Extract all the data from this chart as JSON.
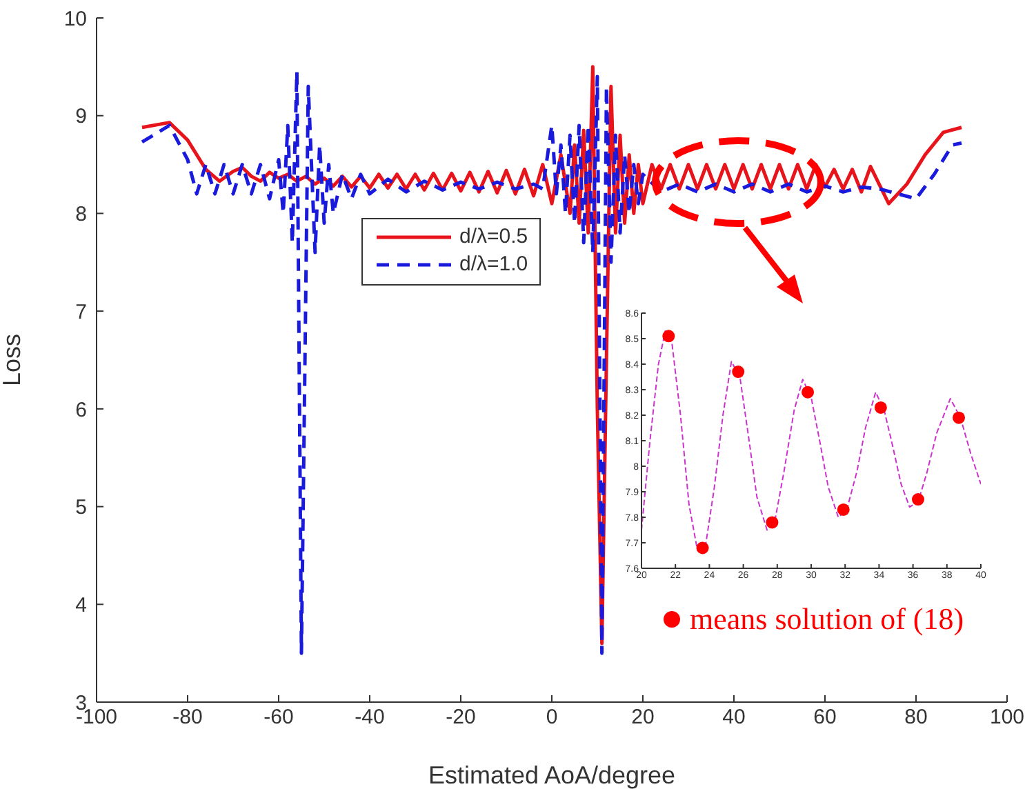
{
  "chart_data": [
    {
      "type": "line",
      "xlabel": "Estimated AoA/degree",
      "ylabel": "Loss",
      "xlim": [
        -100,
        100
      ],
      "xticks": [
        -100,
        -80,
        -60,
        -40,
        -20,
        0,
        20,
        40,
        60,
        80,
        100
      ],
      "ylim": [
        3,
        10
      ],
      "yticks": [
        3,
        4,
        5,
        6,
        7,
        8,
        9,
        10
      ],
      "grid": false,
      "legend": "top center",
      "marker": "none",
      "series": [
        {
          "name": "d/λ=0.5",
          "color": "#e8141c",
          "line_style": "solid",
          "x": [
            -90,
            -84,
            -80,
            -76,
            -73,
            -70,
            -68,
            -66,
            -64,
            -62,
            -60,
            -58,
            -56,
            -54,
            -52,
            -50,
            -48,
            -46,
            -44,
            -42,
            -40,
            -38,
            -36,
            -34,
            -32,
            -30,
            -28,
            -26,
            -24,
            -22,
            -20,
            -18,
            -16,
            -14,
            -12,
            -10,
            -8,
            -6,
            -4,
            -2,
            0,
            2,
            4,
            5,
            6,
            7,
            8,
            9,
            10,
            11,
            12,
            13,
            14,
            15,
            16,
            17,
            18,
            19,
            20,
            22,
            24,
            26,
            28,
            30,
            32,
            34,
            36,
            38,
            40,
            42,
            44,
            46,
            48,
            50,
            52,
            54,
            56,
            58,
            60,
            62,
            64,
            66,
            68,
            70,
            74,
            78,
            82,
            86,
            90
          ],
          "values": [
            8.88,
            8.93,
            8.75,
            8.45,
            8.33,
            8.43,
            8.47,
            8.38,
            8.33,
            8.42,
            8.36,
            8.4,
            8.33,
            8.38,
            8.3,
            8.36,
            8.28,
            8.38,
            8.27,
            8.38,
            8.26,
            8.4,
            8.26,
            8.4,
            8.25,
            8.4,
            8.24,
            8.41,
            8.24,
            8.41,
            8.23,
            8.42,
            8.22,
            8.43,
            8.21,
            8.44,
            8.2,
            8.45,
            8.18,
            8.5,
            8.1,
            8.6,
            8.0,
            8.7,
            7.9,
            8.85,
            7.8,
            9.5,
            6,
            3.6,
            6.5,
            9.3,
            7.8,
            8.8,
            7.9,
            8.6,
            8.0,
            8.5,
            8.1,
            8.5,
            8.25,
            8.5,
            8.25,
            8.5,
            8.25,
            8.5,
            8.25,
            8.5,
            8.25,
            8.5,
            8.25,
            8.5,
            8.25,
            8.5,
            8.25,
            8.5,
            8.25,
            8.5,
            8.27,
            8.45,
            8.25,
            8.45,
            8.22,
            8.48,
            8.1,
            8.3,
            8.6,
            8.83,
            8.88
          ]
        },
        {
          "name": "d/λ=1.0",
          "color": "#1a1adc",
          "line_style": "dashed",
          "x": [
            -90,
            -84,
            -80,
            -78,
            -76,
            -74,
            -72,
            -70,
            -68,
            -66,
            -64,
            -62,
            -60,
            -59,
            -58,
            -57,
            -56,
            -55,
            -53.5,
            -52,
            -51,
            -50,
            -49,
            -48,
            -46,
            -44,
            -42,
            -40,
            -36,
            -32,
            -28,
            -24,
            -20,
            -16,
            -12,
            -8,
            -4,
            -2,
            0,
            1,
            2,
            3,
            4,
            5,
            6,
            7,
            8,
            9,
            10,
            11,
            12,
            13,
            14,
            15,
            16,
            17,
            18,
            19,
            20,
            24,
            28,
            32,
            36,
            40,
            44,
            48,
            52,
            56,
            60,
            64,
            68,
            72,
            76,
            80,
            84,
            88,
            90
          ],
          "values": [
            8.73,
            8.9,
            8.55,
            8.2,
            8.5,
            8.2,
            8.5,
            8.2,
            8.5,
            8.2,
            8.5,
            8.15,
            8.55,
            8.0,
            8.9,
            7.7,
            9.45,
            3.5,
            9.3,
            7.6,
            8.7,
            7.9,
            8.5,
            8.0,
            8.4,
            8.15,
            8.4,
            8.2,
            8.35,
            8.22,
            8.33,
            8.24,
            8.32,
            8.25,
            8.32,
            8.25,
            8.3,
            8.25,
            8.9,
            8.2,
            8.7,
            8.0,
            8.8,
            7.9,
            8.9,
            7.7,
            8.9,
            7.6,
            9.4,
            3.5,
            9.3,
            7.5,
            8.8,
            7.8,
            8.6,
            8.0,
            8.5,
            8.1,
            8.4,
            8.22,
            8.3,
            8.22,
            8.3,
            8.22,
            8.3,
            8.22,
            8.3,
            8.22,
            8.28,
            8.22,
            8.27,
            8.25,
            8.2,
            8.15,
            8.4,
            8.7,
            8.72
          ]
        }
      ]
    },
    {
      "type": "line",
      "xlim": [
        20,
        40
      ],
      "xticks": [
        20,
        22,
        24,
        26,
        28,
        30,
        32,
        34,
        36,
        38,
        40
      ],
      "ylim": [
        7.6,
        8.6
      ],
      "yticks": [
        7.6,
        7.7,
        7.8,
        7.9,
        8,
        8.1,
        8.2,
        8.3,
        8.4,
        8.5,
        8.6
      ],
      "grid": false,
      "legend": "bottom",
      "series": [
        {
          "type": "line",
          "color": "#cc33cc",
          "line_style": "dashed",
          "marker": "none",
          "x": [
            20,
            20.5,
            21,
            21.4,
            21.8,
            22.3,
            22.8,
            23.3,
            23.8,
            24.3,
            24.8,
            25.3,
            25.8,
            26.3,
            26.8,
            27.4,
            27.9,
            28.4,
            29,
            29.5,
            30,
            30.5,
            31,
            31.6,
            32.1,
            32.7,
            33.2,
            33.8,
            34.3,
            34.8,
            35.3,
            35.8,
            36.3,
            36.8,
            37.4,
            38.2,
            38.8,
            39.4,
            40
          ],
          "values": [
            7.75,
            8.1,
            8.4,
            8.53,
            8.48,
            8.2,
            7.85,
            7.67,
            7.7,
            7.92,
            8.2,
            8.41,
            8.35,
            8.12,
            7.88,
            7.75,
            7.8,
            7.98,
            8.22,
            8.34,
            8.27,
            8.1,
            7.92,
            7.8,
            7.83,
            7.98,
            8.15,
            8.29,
            8.22,
            8.08,
            7.93,
            7.84,
            7.86,
            7.97,
            8.13,
            8.265,
            8.19,
            8.05,
            7.93
          ]
        },
        {
          "type": "scatter",
          "name": "means solution of (18)",
          "color": "#ff0000",
          "marker": "circle",
          "x": [
            21.6,
            23.6,
            25.7,
            27.7,
            29.8,
            31.9,
            34.1,
            36.3,
            38.7
          ],
          "values": [
            8.51,
            7.68,
            8.37,
            7.78,
            8.29,
            7.83,
            8.23,
            7.87,
            8.19
          ]
        }
      ]
    }
  ]
}
